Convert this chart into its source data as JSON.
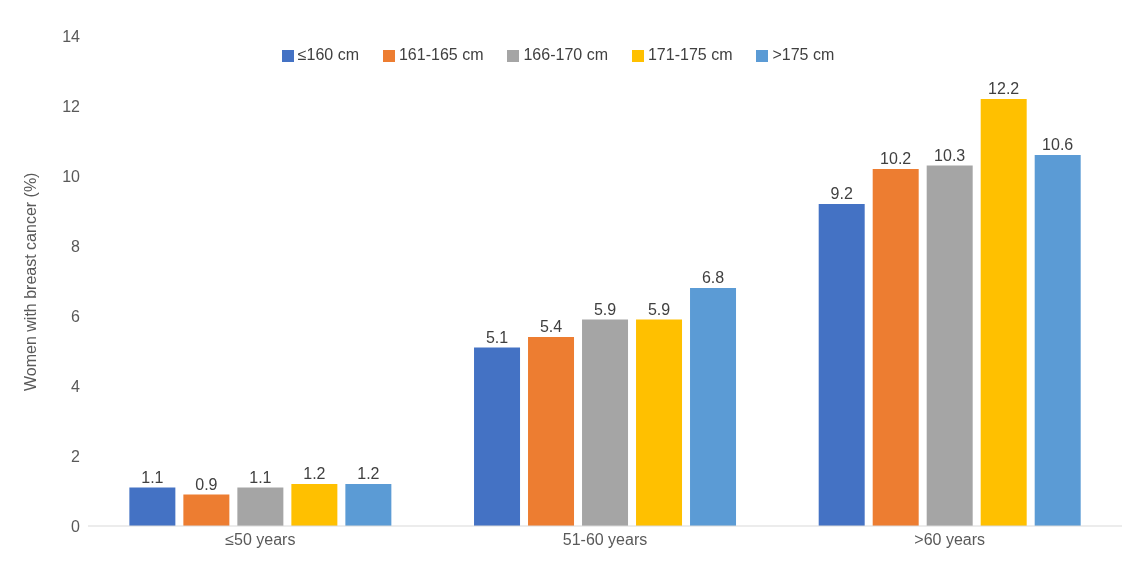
{
  "chart_data": {
    "type": "bar",
    "ylabel": "Women with breast cancer (%)",
    "categories": [
      "≤50 years",
      "51-60 years",
      ">60 years"
    ],
    "series": [
      {
        "name": "≤160 cm",
        "color": "#4472c4",
        "values": [
          1.1,
          5.1,
          9.2
        ]
      },
      {
        "name": "161-165 cm",
        "color": "#ed7d31",
        "values": [
          0.9,
          5.4,
          10.2
        ]
      },
      {
        "name": "166-170 cm",
        "color": "#a5a5a5",
        "values": [
          1.1,
          5.9,
          10.3
        ]
      },
      {
        "name": "171-175 cm",
        "color": "#ffc000",
        "values": [
          1.2,
          5.9,
          12.2
        ]
      },
      {
        "name": ">175 cm",
        "color": "#5b9bd5",
        "values": [
          1.2,
          6.8,
          10.6
        ]
      }
    ],
    "ylim": [
      0,
      14
    ],
    "yticks": [
      0,
      2,
      4,
      6,
      8,
      10,
      12,
      14
    ],
    "data_labels": true,
    "grid": false,
    "legend": "top"
  }
}
